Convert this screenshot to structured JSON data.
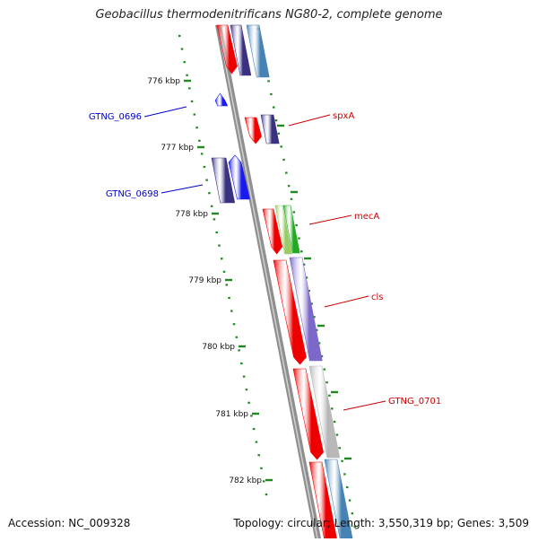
{
  "title": "Geobacillus thermodenitrificans NG80-2, complete genome",
  "footer": {
    "accession": "Accession: NC_009328",
    "topology": "Topology: circular; Length: 3,550,319 bp; Genes: 3,509"
  },
  "scale": {
    "unit": "kbp",
    "ticks": [
      {
        "label": "776 kbp"
      },
      {
        "label": "777 kbp"
      },
      {
        "label": "778 kbp"
      },
      {
        "label": "779 kbp"
      },
      {
        "label": "780 kbp"
      },
      {
        "label": "781 kbp"
      },
      {
        "label": "782 kbp"
      }
    ]
  },
  "gene_labels": [
    {
      "text": "spxA",
      "color": "#cc0000"
    },
    {
      "text": "mecA",
      "color": "#cc0000"
    },
    {
      "text": "cls",
      "color": "#cc0000"
    },
    {
      "text": "GTNG_0701",
      "color": "#cc0000"
    },
    {
      "text": "GTNG_0696",
      "color": "#0000cc"
    },
    {
      "text": "GTNG_0698",
      "color": "#0000cc"
    }
  ],
  "colors": {
    "backbone": "#888888",
    "tick": "#228822",
    "cds_red": "#ee0000",
    "cds_navy": "#3a3280",
    "cds_blue": "#1a1aee",
    "cds_steel": "#4682b4",
    "cds_purple": "#7b68c8",
    "cds_grey": "#b8b8b8",
    "cds_green": "#22aa22",
    "cds_lightgreen": "#99cc66"
  }
}
